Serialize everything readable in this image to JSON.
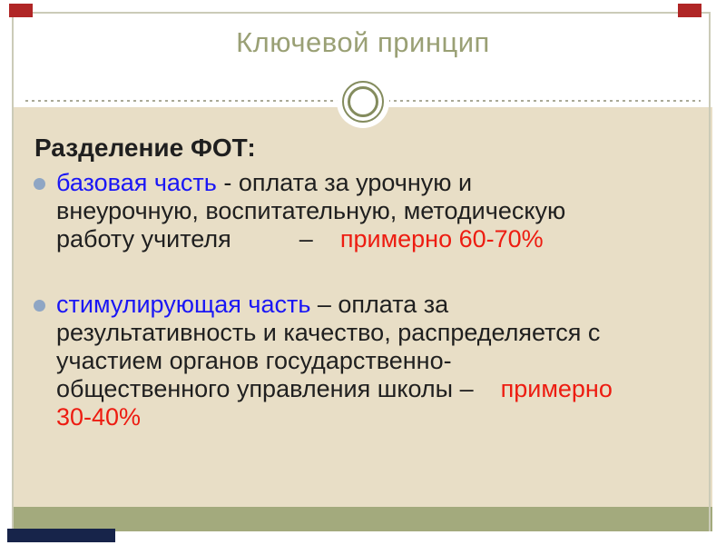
{
  "slide": {
    "title": "Ключевой принцип",
    "heading": "Разделение ФОТ:",
    "bullets": [
      {
        "lines": [
          {
            "segments": [
              {
                "text": "базовая часть",
                "style": "blue"
              },
              {
                "text": " - оплата за урочную и",
                "style": "black"
              }
            ]
          },
          {
            "segments": [
              {
                "text": "внеурочную, воспитательную, методическую",
                "style": "black"
              }
            ]
          },
          {
            "segments": [
              {
                "text": "работу учителя          –    ",
                "style": "black"
              },
              {
                "text": "примерно 60-70%",
                "style": "red"
              }
            ]
          }
        ]
      },
      {
        "lines": [
          {
            "segments": [
              {
                "text": "стимулирующая часть",
                "style": "blue"
              },
              {
                "text": " – оплата за",
                "style": "black"
              }
            ]
          },
          {
            "segments": [
              {
                "text": "результативность и качество, распределяется с",
                "style": "black"
              }
            ]
          },
          {
            "segments": [
              {
                "text": "участием органов государственно-",
                "style": "black"
              }
            ]
          },
          {
            "segments": [
              {
                "text": "общественного управления школы –",
                "style": "black"
              },
              {
                "text": "    примерно",
                "style": "red"
              }
            ]
          },
          {
            "segments": [
              {
                "text": "30-40%",
                "style": "red"
              }
            ]
          }
        ]
      }
    ],
    "colors": {
      "page_background": "#ffffff",
      "content_background": "#e8dec6",
      "footer_band": "#a3aa7d",
      "frame_border": "#cbcbb8",
      "title_text": "#9aa075",
      "body_text": "#1f1f1f",
      "emphasis_blue": "#1a16f5",
      "emphasis_red": "#ed1c11",
      "bullet_marker": "#8fa6c4",
      "ornament_ring": "#848c5e",
      "corner_accent": "#b02626",
      "watermark_bar": "#17244a"
    }
  }
}
